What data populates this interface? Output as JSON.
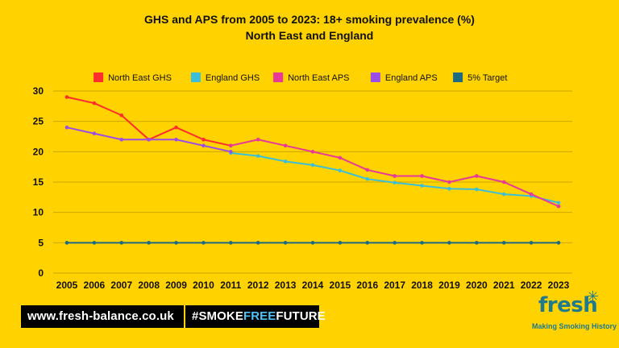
{
  "page": {
    "title_line1": "GHS and APS from 2005 to 2023: 18+ smoking prevalence (%)",
    "title_line2": "North East and England"
  },
  "footer": {
    "website": "www.fresh-balance.co.uk",
    "hashtag_part1": "#SMOKE",
    "hashtag_part2": "FREE",
    "hashtag_part3": "FUTURE"
  },
  "logo": {
    "wordmark": "fresh",
    "tagline": "Making Smoking History"
  },
  "colors": {
    "background": "#FFD200",
    "north_east_ghs": "#FF2D2D",
    "england_ghs": "#3BBFD8",
    "north_east_aps": "#E8399B",
    "england_aps": "#9B4DE8",
    "target": "#1E6A80"
  },
  "chart_data": {
    "type": "line",
    "title": "GHS and APS from 2005 to 2023: 18+ smoking prevalence (%) North East and England",
    "xlabel": "",
    "ylabel": "",
    "ylim": [
      0,
      30
    ],
    "yticks": [
      0,
      5,
      10,
      15,
      20,
      25,
      30
    ],
    "grid": true,
    "legend_position": "top",
    "x": [
      2005,
      2006,
      2007,
      2008,
      2009,
      2010,
      2011,
      2012,
      2013,
      2014,
      2015,
      2016,
      2017,
      2018,
      2019,
      2020,
      2021,
      2022,
      2023
    ],
    "series": [
      {
        "name": "North East GHS",
        "color": "#FF2D2D",
        "x": [
          2005,
          2006,
          2007,
          2008,
          2009,
          2010,
          2011
        ],
        "values": [
          29,
          28,
          26,
          22,
          24,
          22,
          21
        ]
      },
      {
        "name": "England GHS",
        "color": "#3BBFD8",
        "x": [
          2011,
          2012,
          2013,
          2014,
          2015,
          2016,
          2017,
          2018,
          2019,
          2020,
          2021,
          2022,
          2023
        ],
        "values": [
          19.8,
          19.3,
          18.4,
          17.8,
          16.9,
          15.5,
          14.9,
          14.4,
          13.9,
          13.8,
          13.0,
          12.7,
          11.6
        ]
      },
      {
        "name": "North East APS",
        "color": "#E8399B",
        "x": [
          2011,
          2012,
          2013,
          2014,
          2015,
          2016,
          2017,
          2018,
          2019,
          2020,
          2021,
          2022,
          2023
        ],
        "values": [
          21,
          22,
          21,
          20,
          19,
          17,
          16,
          16,
          15,
          16,
          15,
          13,
          11
        ]
      },
      {
        "name": "England APS",
        "color": "#9B4DE8",
        "x": [
          2005,
          2006,
          2007,
          2008,
          2009,
          2010,
          2011
        ],
        "values": [
          24,
          23,
          22,
          22,
          22,
          21,
          20
        ]
      },
      {
        "name": "5% Target",
        "color": "#1E6A80",
        "x": [
          2005,
          2006,
          2007,
          2008,
          2009,
          2010,
          2011,
          2012,
          2013,
          2014,
          2015,
          2016,
          2017,
          2018,
          2019,
          2020,
          2021,
          2022,
          2023
        ],
        "values": [
          5,
          5,
          5,
          5,
          5,
          5,
          5,
          5,
          5,
          5,
          5,
          5,
          5,
          5,
          5,
          5,
          5,
          5,
          5
        ]
      }
    ]
  }
}
